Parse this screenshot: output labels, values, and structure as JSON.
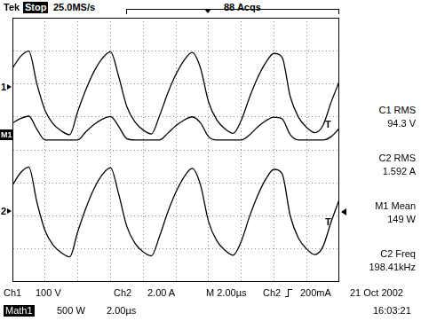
{
  "chart_data": {
    "type": "line",
    "header": {
      "brand": "Tek",
      "state": "Stop",
      "rate": "25.0MS/s",
      "acquisitions": "88 Acqs"
    },
    "measurements": [
      {
        "label": "C1 RMS",
        "value": "94.3 V"
      },
      {
        "label": "C2 RMS",
        "value": "1.592 A"
      },
      {
        "label": "M1 Mean",
        "value": "149 W"
      },
      {
        "label": "C2 Freq",
        "value": "198.41kHz"
      }
    ],
    "footer": {
      "ch1": [
        "Ch1",
        "100 V"
      ],
      "ch2": [
        "Ch2",
        "2.00 A"
      ],
      "timebase": "M 2.00µs",
      "trigger": [
        "Ch2",
        "200mA"
      ],
      "date": "21 Oct 2002",
      "time": "16:03:21",
      "math": [
        "Math1",
        "500 W",
        "2.00µs"
      ]
    },
    "trigger_mark": "T",
    "x": [
      0,
      0.5,
      1,
      1.5,
      2,
      2.5,
      3,
      3.5,
      4,
      4.5,
      5,
      5.5,
      6,
      6.5,
      7,
      7.5,
      8,
      8.5,
      9,
      9.5,
      10,
      10.5,
      11,
      11.5,
      12,
      12.5,
      13,
      13.5,
      14,
      14.5,
      15,
      15.5,
      16,
      16.5,
      17,
      17.5,
      18,
      18.5,
      19,
      19.5,
      20
    ],
    "xlim": [
      0,
      20
    ],
    "xticks": [
      0,
      2,
      4,
      6,
      8,
      10,
      12,
      14,
      16,
      18,
      20
    ],
    "ylim": [
      -4,
      4
    ],
    "yticks": [
      -4,
      -3,
      -2,
      -1,
      0,
      1,
      2,
      3,
      4
    ],
    "grid": true,
    "tick_labels": false,
    "series": [
      {
        "name": "1",
        "color": "#000000",
        "reference": 1.9,
        "values": [
          2.47,
          2.83,
          2.99,
          1.99,
          1.19,
          0.78,
          0.57,
          0.46,
          1.17,
          1.83,
          2.38,
          2.77,
          2.97,
          2.22,
          1.31,
          0.84,
          0.6,
          0.48,
          1.03,
          1.71,
          2.28,
          2.71,
          2.95,
          2.49,
          1.45,
          0.91,
          0.64,
          0.5,
          0.89,
          1.58,
          2.18,
          2.64,
          2.92,
          2.8,
          1.61,
          0.99,
          0.68,
          0.52,
          0.74,
          1.44,
          2.07
        ]
      },
      {
        "name": "M1",
        "color": "#000000",
        "reference": 0.46,
        "values": [
          0.81,
          0.95,
          1.02,
          0.62,
          0.3,
          0.3,
          0.3,
          0.3,
          0.3,
          0.55,
          0.77,
          0.93,
          1.01,
          0.71,
          0.34,
          0.3,
          0.3,
          0.3,
          0.3,
          0.5,
          0.73,
          0.9,
          1.0,
          0.82,
          0.4,
          0.3,
          0.3,
          0.3,
          0.3,
          0.45,
          0.69,
          0.88,
          0.99,
          0.94,
          0.46,
          0.3,
          0.3,
          0.3,
          0.3,
          0.4,
          0.65
        ]
      },
      {
        "name": "2",
        "color": "#000000",
        "reference": -1.85,
        "values": [
          -1.07,
          -0.69,
          -0.52,
          -1.59,
          -2.45,
          -2.89,
          -3.12,
          -3.24,
          -2.47,
          -1.76,
          -1.17,
          -0.75,
          -0.54,
          -1.34,
          -2.32,
          -2.83,
          -3.09,
          -3.21,
          -2.62,
          -1.89,
          -1.28,
          -0.82,
          -0.56,
          -1.05,
          -2.17,
          -2.75,
          -3.04,
          -3.19,
          -2.77,
          -2.03,
          -1.39,
          -0.89,
          -0.59,
          -0.72,
          -2.0,
          -2.67,
          -3.0,
          -3.17,
          -2.93,
          -2.18,
          -1.5
        ]
      }
    ]
  }
}
